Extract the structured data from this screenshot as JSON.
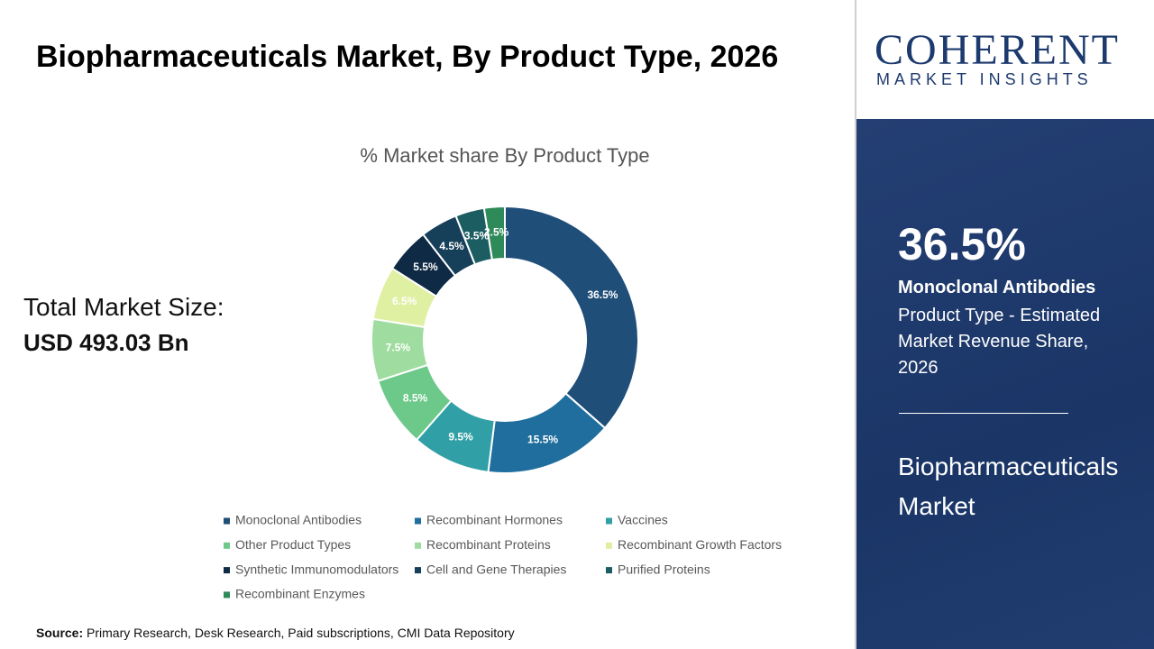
{
  "page": {
    "title": "Biopharmaceuticals Market, By Product Type, 2026",
    "market_size_label": "Total Market Size:",
    "market_size_value": "USD 493.03 Bn",
    "source_label": "Source:",
    "source_text": "Primary Research, Desk Research, Paid subscriptions, CMI Data Repository",
    "logo_main": "COHERENT",
    "logo_sub": "MARKET INSIGHTS",
    "highlight_value": "36.5%",
    "highlight_name": "Monoclonal Antibodies",
    "highlight_desc": "Product Type - Estimated Market Revenue Share, 2026",
    "market_name": "Biopharmaceuticals Market"
  },
  "chart_data": {
    "type": "donut",
    "title": "% Market share By Product Type",
    "categories": [
      "Monoclonal Antibodies",
      "Recombinant Hormones",
      "Vaccines",
      "Other Product Types",
      "Recombinant Proteins",
      "Recombinant Growth Factors",
      "Synthetic Immunomodulators",
      "Cell and Gene Therapies",
      "Purified Proteins",
      "Recombinant Enzymes"
    ],
    "values": [
      36.5,
      15.5,
      9.5,
      8.5,
      7.5,
      6.5,
      5.5,
      4.5,
      3.5,
      2.5
    ],
    "value_labels": [
      "36.5%",
      "15.5%",
      "9.5%",
      "8.5%",
      "7.5%",
      "6.5%",
      "5.5%",
      "4.5%",
      "3.5%",
      "2.5%"
    ],
    "colors": [
      "#1f4e79",
      "#1f6e9e",
      "#31a0a6",
      "#6cc98a",
      "#9fdc9f",
      "#e0f0a2",
      "#0f2a45",
      "#163f5a",
      "#1c5d62",
      "#2e8a58"
    ]
  }
}
